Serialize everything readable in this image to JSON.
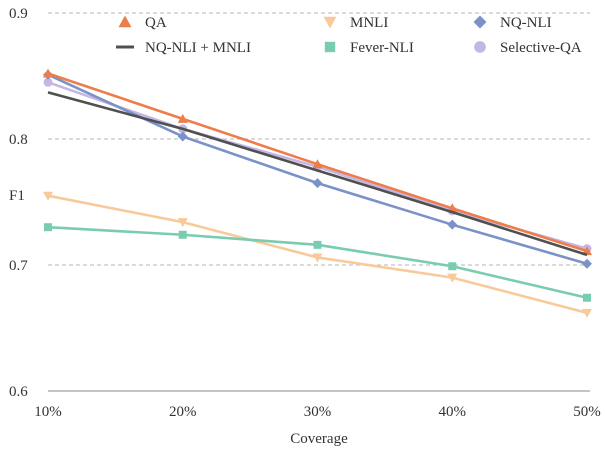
{
  "chart_data": {
    "type": "line",
    "xlabel": "Coverage",
    "ylabel": "F1",
    "categories": [
      "10%",
      "20%",
      "30%",
      "40%",
      "50%"
    ],
    "x": [
      10,
      20,
      30,
      40,
      50
    ],
    "ylim": [
      0.6,
      0.9
    ],
    "yticks": [
      0.6,
      0.7,
      0.8,
      0.9
    ],
    "ytick_labels": [
      "0.6",
      "0.7",
      "0.8",
      "0.9"
    ],
    "grid": "horizontal dashed",
    "legend": "top",
    "series": [
      {
        "name": "QA",
        "color": "#ED7D4A",
        "marker": "triangle-up",
        "values": [
          0.852,
          0.816,
          0.78,
          0.745,
          0.711
        ]
      },
      {
        "name": "MNLI",
        "color": "#F8C99A",
        "marker": "triangle-down",
        "values": [
          0.755,
          0.734,
          0.706,
          0.69,
          0.662
        ]
      },
      {
        "name": "NQ-NLI",
        "color": "#7A92C7",
        "marker": "diamond",
        "values": [
          0.851,
          0.802,
          0.765,
          0.732,
          0.701
        ]
      },
      {
        "name": "NQ-NLI + MNLI",
        "color": "#505050",
        "marker": "none",
        "values": [
          0.837,
          0.808,
          0.775,
          0.742,
          0.708
        ]
      },
      {
        "name": "Fever-NLI",
        "color": "#79CCB0",
        "marker": "square",
        "values": [
          0.73,
          0.724,
          0.716,
          0.699,
          0.674
        ]
      },
      {
        "name": "Selective-QA",
        "color": "#C5B6E6",
        "marker": "circle",
        "values": [
          0.845,
          0.808,
          0.778,
          0.743,
          0.713
        ]
      }
    ]
  }
}
